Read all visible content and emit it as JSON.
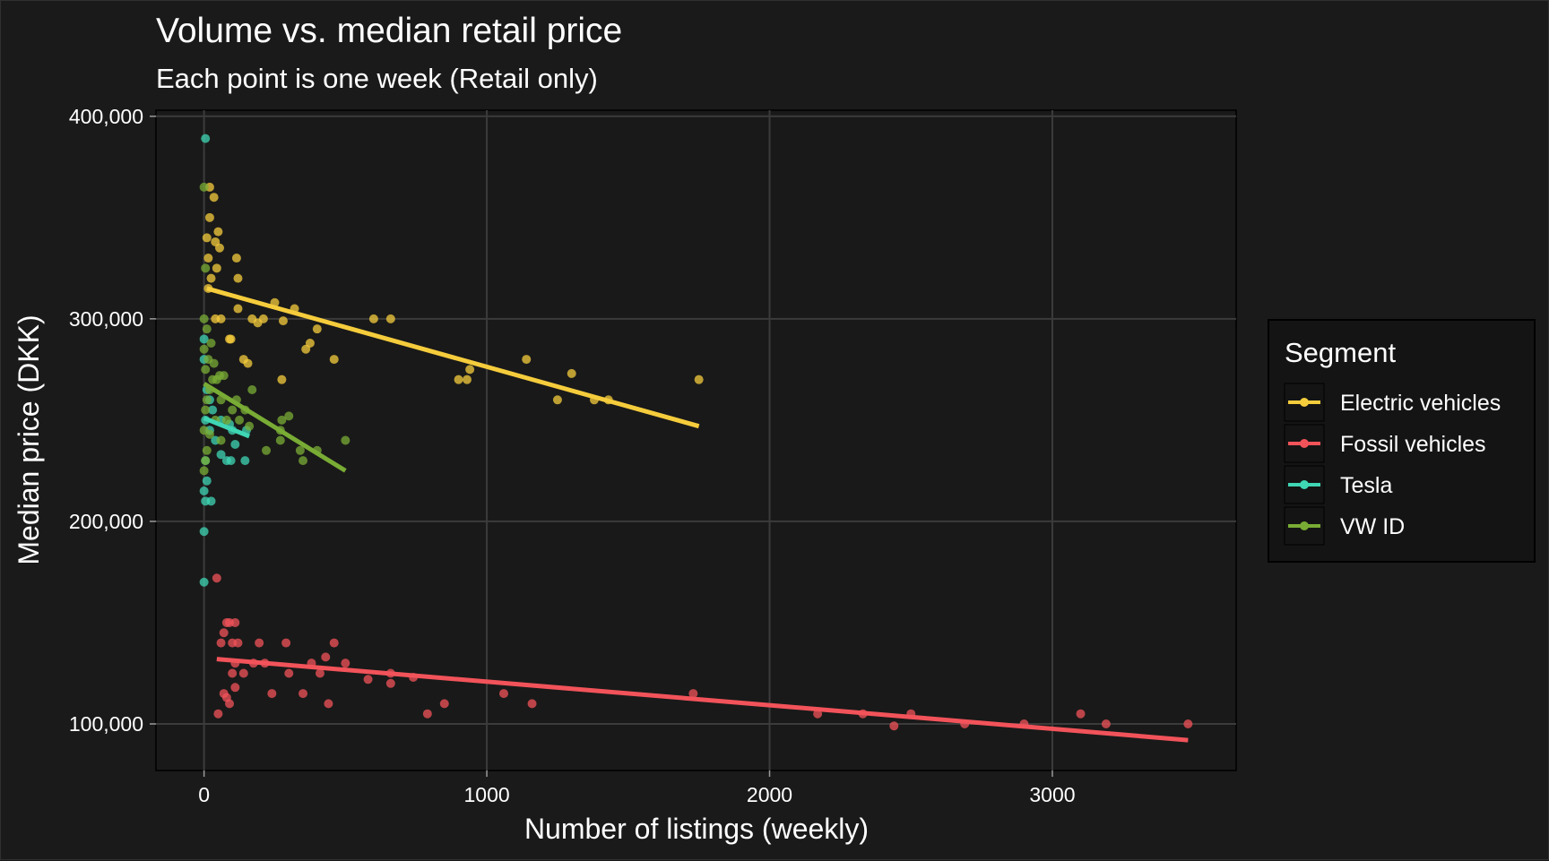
{
  "chart_data": {
    "type": "scatter",
    "title": "Volume vs. median retail price",
    "subtitle": "Each point is one week (Retail only)",
    "xlabel": "Number of listings (weekly)",
    "ylabel": "Median price (DKK)",
    "xlim": [
      -170,
      3650
    ],
    "ylim": [
      77000,
      403000
    ],
    "x_ticks": [
      0,
      1000,
      2000,
      3000
    ],
    "x_tick_labels": [
      "0",
      "1000",
      "2000",
      "3000"
    ],
    "y_ticks": [
      100000,
      200000,
      300000,
      400000
    ],
    "y_tick_labels": [
      "100,000",
      "200,000",
      "300,000",
      "400,000"
    ],
    "grid": true,
    "legend": {
      "title": "Segment",
      "position": "right"
    },
    "series": [
      {
        "name": "Electric vehicles",
        "color": "#f5cc3c",
        "points": [
          [
            20,
            365000
          ],
          [
            35,
            360000
          ],
          [
            20,
            350000
          ],
          [
            50,
            343000
          ],
          [
            10,
            340000
          ],
          [
            40,
            338000
          ],
          [
            55,
            335000
          ],
          [
            15,
            330000
          ],
          [
            45,
            325000
          ],
          [
            115,
            330000
          ],
          [
            120,
            320000
          ],
          [
            25,
            320000
          ],
          [
            15,
            315000
          ],
          [
            250,
            308000
          ],
          [
            320,
            305000
          ],
          [
            120,
            305000
          ],
          [
            170,
            300000
          ],
          [
            210,
            300000
          ],
          [
            190,
            298000
          ],
          [
            280,
            299000
          ],
          [
            40,
            300000
          ],
          [
            60,
            300000
          ],
          [
            90,
            290000
          ],
          [
            95,
            290000
          ],
          [
            400,
            295000
          ],
          [
            375,
            288000
          ],
          [
            360,
            285000
          ],
          [
            140,
            280000
          ],
          [
            155,
            278000
          ],
          [
            460,
            280000
          ],
          [
            275,
            270000
          ],
          [
            600,
            300000
          ],
          [
            660,
            300000
          ],
          [
            900,
            270000
          ],
          [
            930,
            270000
          ],
          [
            940,
            275000
          ],
          [
            1140,
            280000
          ],
          [
            1250,
            260000
          ],
          [
            1300,
            273000
          ],
          [
            1380,
            260000
          ],
          [
            1430,
            260000
          ],
          [
            1750,
            270000
          ]
        ],
        "trend": [
          [
            10,
            315000
          ],
          [
            1750,
            247000
          ]
        ]
      },
      {
        "name": "Fossil vehicles",
        "color": "#f2535a",
        "points": [
          [
            45,
            172000
          ],
          [
            80,
            150000
          ],
          [
            90,
            150000
          ],
          [
            110,
            150000
          ],
          [
            70,
            145000
          ],
          [
            60,
            140000
          ],
          [
            100,
            140000
          ],
          [
            120,
            140000
          ],
          [
            195,
            140000
          ],
          [
            290,
            140000
          ],
          [
            460,
            140000
          ],
          [
            110,
            130000
          ],
          [
            175,
            130000
          ],
          [
            215,
            130000
          ],
          [
            380,
            130000
          ],
          [
            430,
            133000
          ],
          [
            500,
            130000
          ],
          [
            100,
            125000
          ],
          [
            140,
            125000
          ],
          [
            300,
            125000
          ],
          [
            410,
            125000
          ],
          [
            580,
            122000
          ],
          [
            660,
            125000
          ],
          [
            660,
            120000
          ],
          [
            740,
            123000
          ],
          [
            70,
            115000
          ],
          [
            80,
            113000
          ],
          [
            110,
            118000
          ],
          [
            240,
            115000
          ],
          [
            350,
            115000
          ],
          [
            90,
            110000
          ],
          [
            440,
            110000
          ],
          [
            850,
            110000
          ],
          [
            50,
            105000
          ],
          [
            790,
            105000
          ],
          [
            1060,
            115000
          ],
          [
            1160,
            110000
          ],
          [
            1730,
            115000
          ],
          [
            2170,
            105000
          ],
          [
            2330,
            105000
          ],
          [
            2440,
            99000
          ],
          [
            2500,
            105000
          ],
          [
            2690,
            100000
          ],
          [
            2900,
            100000
          ],
          [
            3100,
            105000
          ],
          [
            3190,
            100000
          ],
          [
            3480,
            100000
          ]
        ],
        "trend": [
          [
            45,
            132000
          ],
          [
            3480,
            92000
          ]
        ]
      },
      {
        "name": "Tesla",
        "color": "#3fd6b4",
        "points": [
          [
            5,
            389000
          ],
          [
            0,
            290000
          ],
          [
            0,
            280000
          ],
          [
            10,
            265000
          ],
          [
            20,
            260000
          ],
          [
            30,
            255000
          ],
          [
            5,
            250000
          ],
          [
            60,
            250000
          ],
          [
            90,
            248000
          ],
          [
            100,
            245000
          ],
          [
            20,
            245000
          ],
          [
            150,
            245000
          ],
          [
            40,
            240000
          ],
          [
            110,
            238000
          ],
          [
            60,
            233000
          ],
          [
            80,
            230000
          ],
          [
            95,
            230000
          ],
          [
            145,
            230000
          ],
          [
            5,
            230000
          ],
          [
            10,
            220000
          ],
          [
            0,
            215000
          ],
          [
            5,
            210000
          ],
          [
            25,
            210000
          ],
          [
            0,
            195000
          ],
          [
            0,
            170000
          ]
        ],
        "trend": [
          [
            0,
            251000
          ],
          [
            160,
            242000
          ]
        ]
      },
      {
        "name": "VW ID",
        "color": "#79ac35",
        "points": [
          [
            0,
            365000
          ],
          [
            5,
            325000
          ],
          [
            0,
            300000
          ],
          [
            10,
            295000
          ],
          [
            25,
            288000
          ],
          [
            0,
            285000
          ],
          [
            15,
            280000
          ],
          [
            35,
            278000
          ],
          [
            5,
            275000
          ],
          [
            55,
            272000
          ],
          [
            70,
            272000
          ],
          [
            30,
            270000
          ],
          [
            45,
            270000
          ],
          [
            20,
            265000
          ],
          [
            170,
            265000
          ],
          [
            10,
            260000
          ],
          [
            60,
            260000
          ],
          [
            115,
            260000
          ],
          [
            5,
            255000
          ],
          [
            100,
            255000
          ],
          [
            145,
            255000
          ],
          [
            40,
            250000
          ],
          [
            80,
            250000
          ],
          [
            125,
            250000
          ],
          [
            275,
            250000
          ],
          [
            300,
            252000
          ],
          [
            0,
            245000
          ],
          [
            20,
            243000
          ],
          [
            160,
            247000
          ],
          [
            270,
            245000
          ],
          [
            60,
            240000
          ],
          [
            270,
            240000
          ],
          [
            500,
            240000
          ],
          [
            10,
            235000
          ],
          [
            220,
            235000
          ],
          [
            340,
            235000
          ],
          [
            400,
            235000
          ],
          [
            5,
            230000
          ],
          [
            350,
            230000
          ],
          [
            0,
            225000
          ]
        ],
        "trend": [
          [
            0,
            268000
          ],
          [
            500,
            225000
          ]
        ]
      }
    ]
  }
}
